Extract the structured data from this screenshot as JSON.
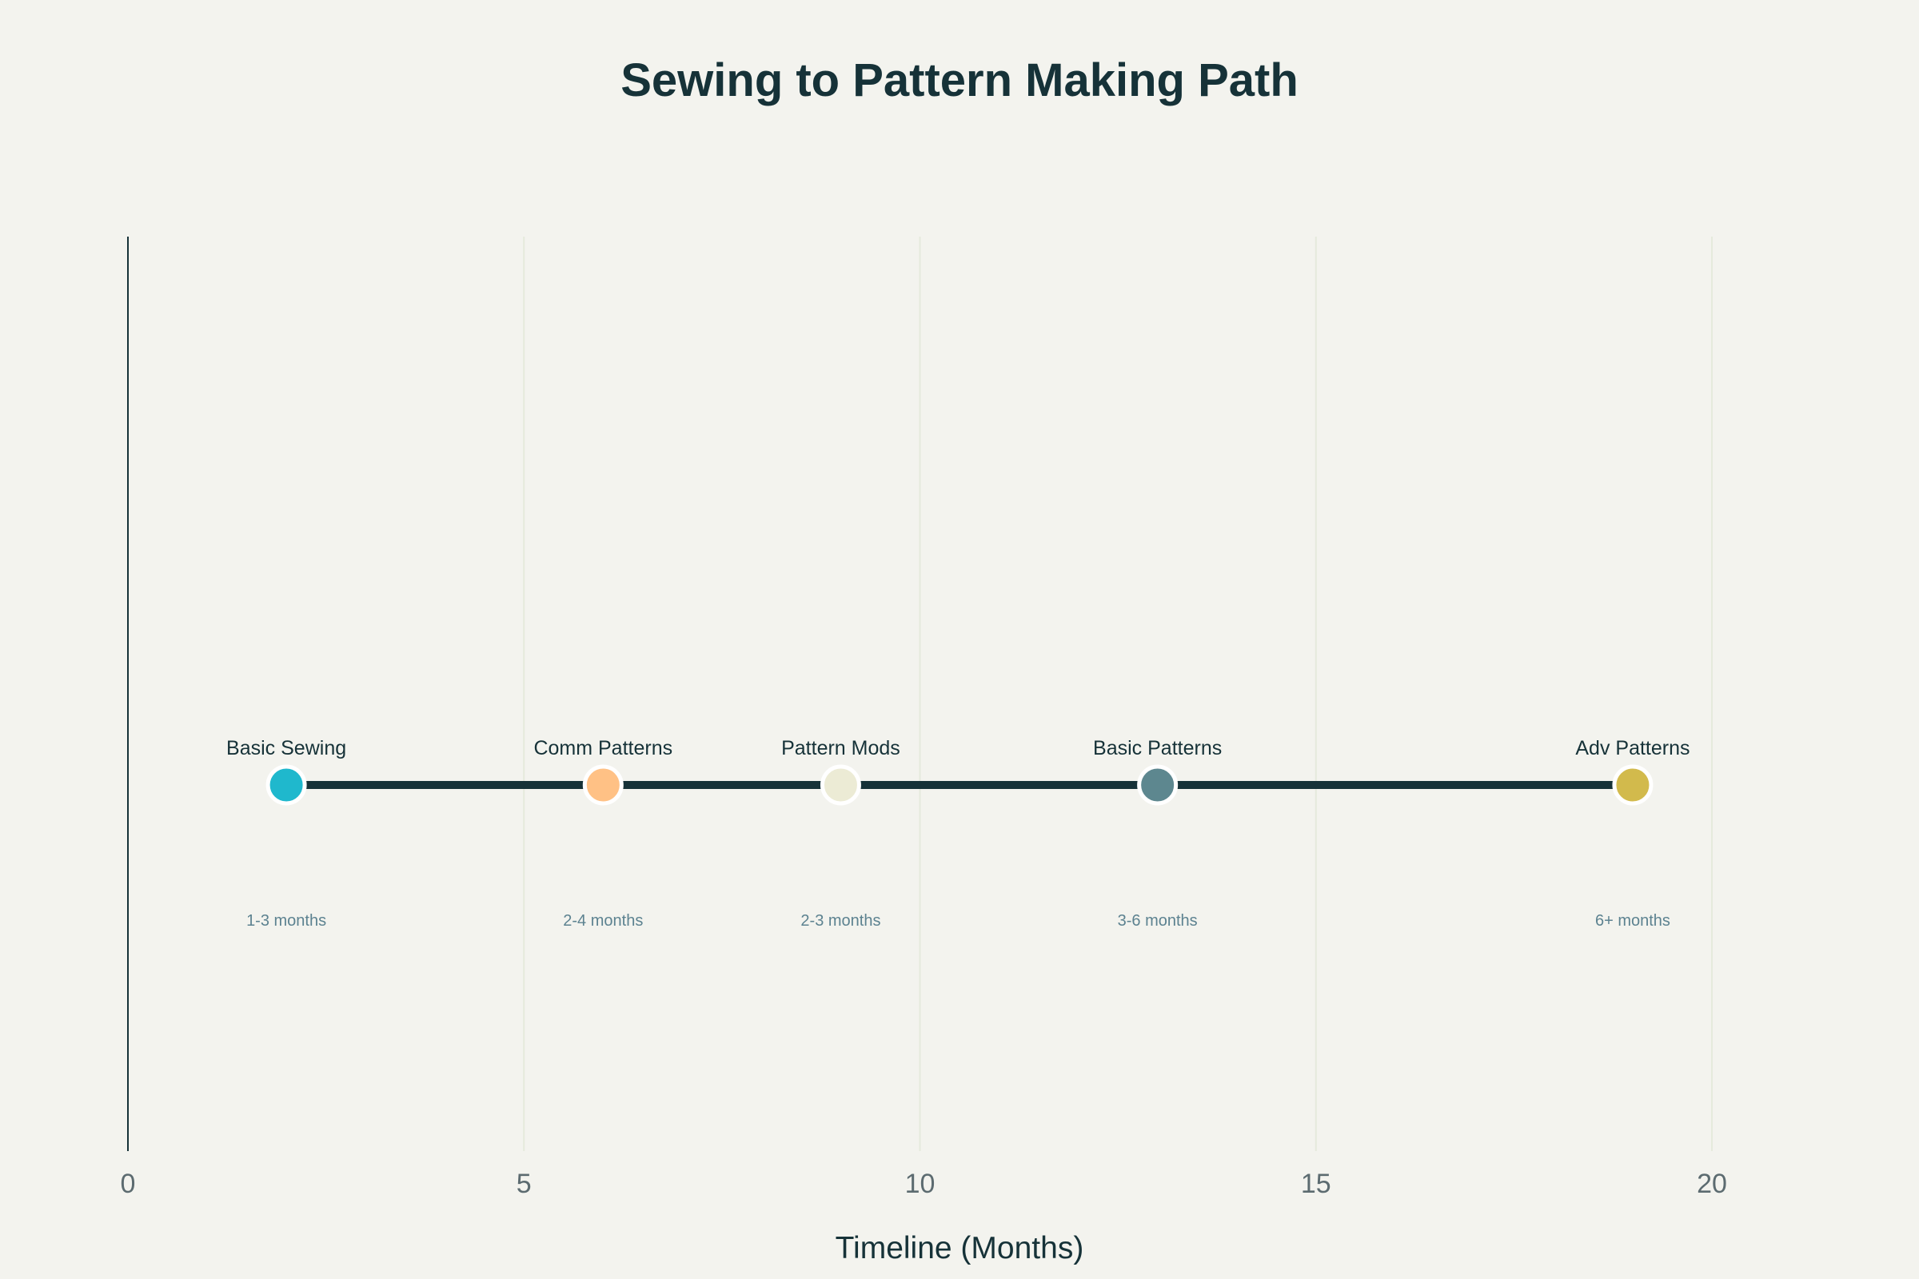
{
  "chart_data": {
    "type": "line",
    "title": "Sewing to Pattern Making Path",
    "xlabel": "Timeline (Months)",
    "ylabel": "",
    "xlim": [
      0,
      20
    ],
    "x_ticks": [
      "0",
      "5",
      "10",
      "15",
      "20"
    ],
    "grid": "vertical",
    "line_color": "#163238",
    "points": [
      {
        "x": 2,
        "label": "Basic Sewing",
        "duration": "1-3 months",
        "color": "#1fb8cd"
      },
      {
        "x": 6,
        "label": "Comm Patterns",
        "duration": "2-4 months",
        "color": "#ffc185"
      },
      {
        "x": 9,
        "label": "Pattern Mods",
        "duration": "2-3 months",
        "color": "#ecebd5"
      },
      {
        "x": 13,
        "label": "Basic Patterns",
        "duration": "3-6 months",
        "color": "#5d878f"
      },
      {
        "x": 19,
        "label": "Adv Patterns",
        "duration": "6+ months",
        "color": "#d2ba4c"
      }
    ]
  }
}
